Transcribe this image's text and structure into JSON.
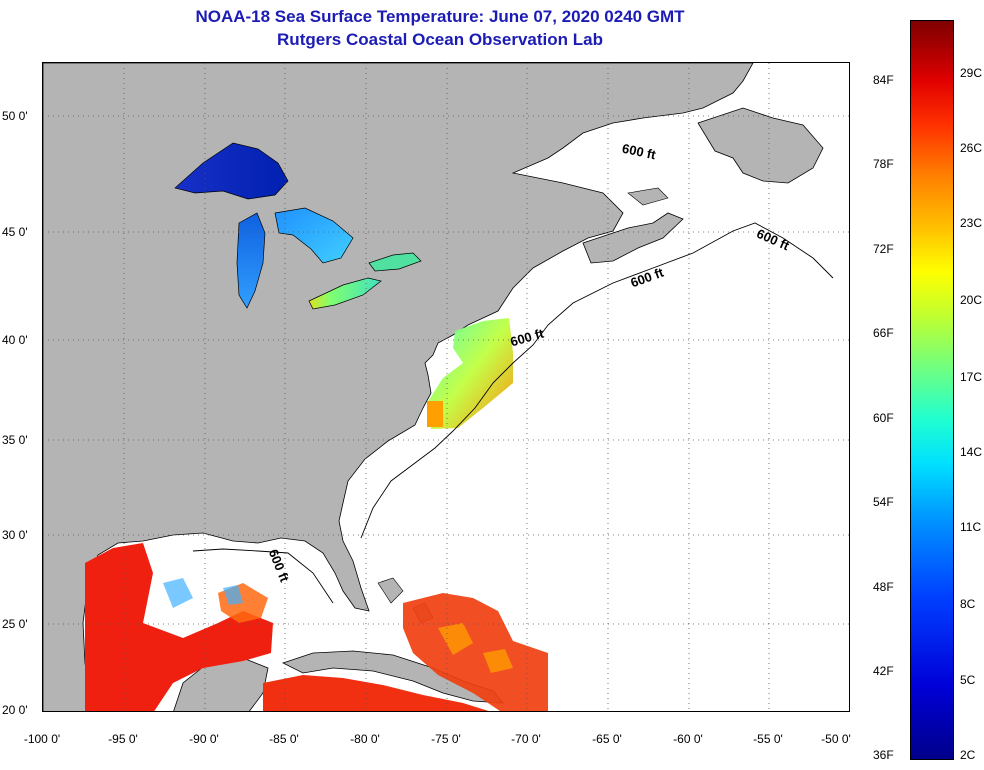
{
  "title": {
    "line1": "NOAA-18 Sea Surface Temperature:  June 07, 2020 0240 GMT",
    "line2": "Rutgers Coastal Ocean Observation Lab"
  },
  "axes": {
    "longitude_labels": [
      "-100 0'",
      "-95 0'",
      "-90 0'",
      "-85 0'",
      "-80 0'",
      "-75 0'",
      "-70 0'",
      "-65 0'",
      "-60 0'",
      "-55 0'",
      "-50 0'"
    ],
    "latitude_labels": [
      "50 0'",
      "45 0'",
      "40 0'",
      "35 0'",
      "30 0'",
      "25 0'",
      "20 0'"
    ]
  },
  "map": {
    "depth_contour_label": "600 ft",
    "land_color": "#b4b4b4",
    "cloud_color": "#ffffff",
    "coast_color": "#000000"
  },
  "colorbar": {
    "fahrenheit_labels": [
      "84F",
      "78F",
      "72F",
      "66F",
      "60F",
      "54F",
      "48F",
      "42F",
      "36F"
    ],
    "celsius_labels": [
      "29C",
      "26C",
      "23C",
      "20C",
      "17C",
      "14C",
      "11C",
      "8C",
      "5C",
      "2C"
    ],
    "min_color": "#00008a",
    "max_color": "#800000"
  }
}
